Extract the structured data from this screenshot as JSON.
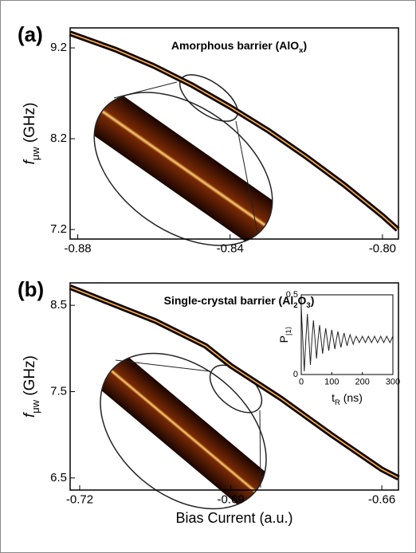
{
  "chart_data": [
    {
      "type": "line",
      "panel_label": "(a)",
      "title": {
        "main": "Amorphous barrier (AlO",
        "sub": "x",
        "end": ")"
      },
      "y_label": {
        "main": "f",
        "sub": "μw",
        "end": " (GHz)"
      },
      "x": [
        -0.882,
        -0.87,
        -0.86,
        -0.85,
        -0.84,
        -0.83,
        -0.82,
        -0.81,
        -0.8,
        -0.796
      ],
      "values": [
        9.36,
        9.18,
        9.0,
        8.79,
        8.55,
        8.29,
        8.0,
        7.69,
        7.35,
        7.2
      ],
      "color": "#ffb347",
      "xlim": [
        -0.882,
        -0.7958
      ],
      "xticks": [
        {
          "value": -0.88,
          "label": "-0.88"
        },
        {
          "value": -0.84,
          "label": "-0.84"
        },
        {
          "value": -0.8,
          "label": "-0.80"
        }
      ],
      "ylim": [
        7.095,
        9.42
      ],
      "yticks": [
        7.2,
        8.2,
        9.2
      ]
    },
    {
      "type": "line",
      "panel_label": "(b)",
      "title": {
        "main": "Single-crystal barrier (Al",
        "sub": "2",
        "mid": "O",
        "sub2": "3",
        "end": ")"
      },
      "y_label": {
        "main": "f",
        "sub": "μw",
        "end": " (GHz)"
      },
      "x_label": "Bias Current (a.u.)",
      "x": [
        -0.7219,
        -0.715,
        -0.705,
        -0.695,
        -0.69,
        -0.68,
        -0.67,
        -0.66,
        -0.6567
      ],
      "values": [
        8.71,
        8.55,
        8.32,
        8.03,
        7.8,
        7.42,
        7.0,
        6.6,
        6.5
      ],
      "color": "#ffb347",
      "xlim": [
        -0.7219,
        -0.6567
      ],
      "xticks": [
        {
          "value": -0.72,
          "label": "-0.72"
        },
        {
          "value": -0.69,
          "label": "-0.69"
        },
        {
          "value": -0.66,
          "label": "-0.66"
        }
      ],
      "ylim": [
        6.36,
        8.76
      ],
      "yticks": [
        6.5,
        7.5,
        8.5
      ]
    },
    {
      "type": "line",
      "y_label": {
        "main": "P",
        "sub": "|1⟩"
      },
      "x_label": {
        "main": "t",
        "sub": "R",
        "end": " (ns)"
      },
      "x": [
        0,
        5,
        10,
        15,
        20,
        25,
        30,
        35,
        40,
        45,
        50,
        55,
        60,
        65,
        70,
        75,
        80,
        85,
        90,
        95,
        100,
        105,
        110,
        115,
        120,
        125,
        130,
        135,
        140,
        145,
        150,
        155,
        160,
        165,
        170,
        175,
        180,
        185,
        190,
        195,
        200,
        205,
        210,
        215,
        220,
        225,
        230,
        235,
        240,
        245,
        250,
        255,
        260,
        265,
        270,
        275,
        280,
        285,
        290,
        295,
        300
      ],
      "values": [
        0.42,
        0.22,
        0.02,
        0.22,
        0.38,
        0.22,
        0.06,
        0.22,
        0.34,
        0.22,
        0.1,
        0.22,
        0.31,
        0.22,
        0.13,
        0.22,
        0.29,
        0.22,
        0.15,
        0.22,
        0.28,
        0.22,
        0.16,
        0.22,
        0.27,
        0.22,
        0.17,
        0.22,
        0.26,
        0.22,
        0.18,
        0.22,
        0.25,
        0.22,
        0.19,
        0.22,
        0.24,
        0.22,
        0.2,
        0.22,
        0.24,
        0.22,
        0.2,
        0.22,
        0.24,
        0.22,
        0.2,
        0.22,
        0.24,
        0.22,
        0.2,
        0.22,
        0.24,
        0.22,
        0.2,
        0.22,
        0.24,
        0.22,
        0.2,
        0.22,
        0.24
      ],
      "color": "#222222",
      "xlim": [
        0,
        300
      ],
      "xticks": [
        0,
        100,
        200,
        300
      ],
      "ylim": [
        0,
        0.5
      ],
      "yticks": [
        0,
        0.5
      ]
    }
  ]
}
